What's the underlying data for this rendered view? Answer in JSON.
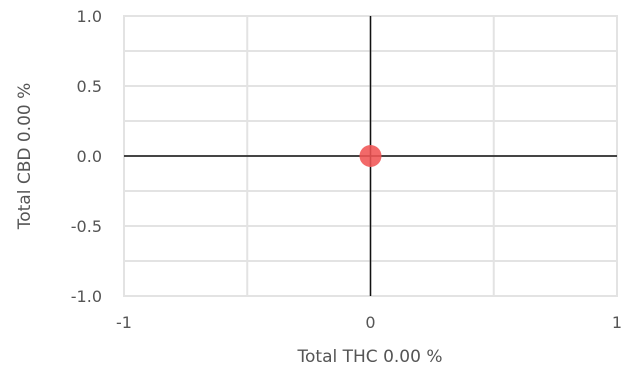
{
  "chart_data": {
    "type": "scatter",
    "xlabel": "Total THC 0.00 %",
    "ylabel": "Total CBD 0.00 %",
    "xlim": [
      -1,
      1
    ],
    "ylim": [
      -1,
      1
    ],
    "x_ticks": [
      -1,
      0,
      1
    ],
    "x_tick_labels": [
      "-1",
      "0",
      "1"
    ],
    "y_ticks": [
      1.0,
      0.5,
      0.0,
      -0.5,
      -1.0
    ],
    "y_tick_labels": [
      "1.0",
      "0.5",
      "0.0",
      "-0.5",
      "-1.0"
    ],
    "grid": true,
    "points": [
      {
        "x": 0,
        "y": 0
      }
    ],
    "point_color": "#f05454",
    "axis_line_color": "#111111",
    "grid_color": "#e3e3e3"
  }
}
